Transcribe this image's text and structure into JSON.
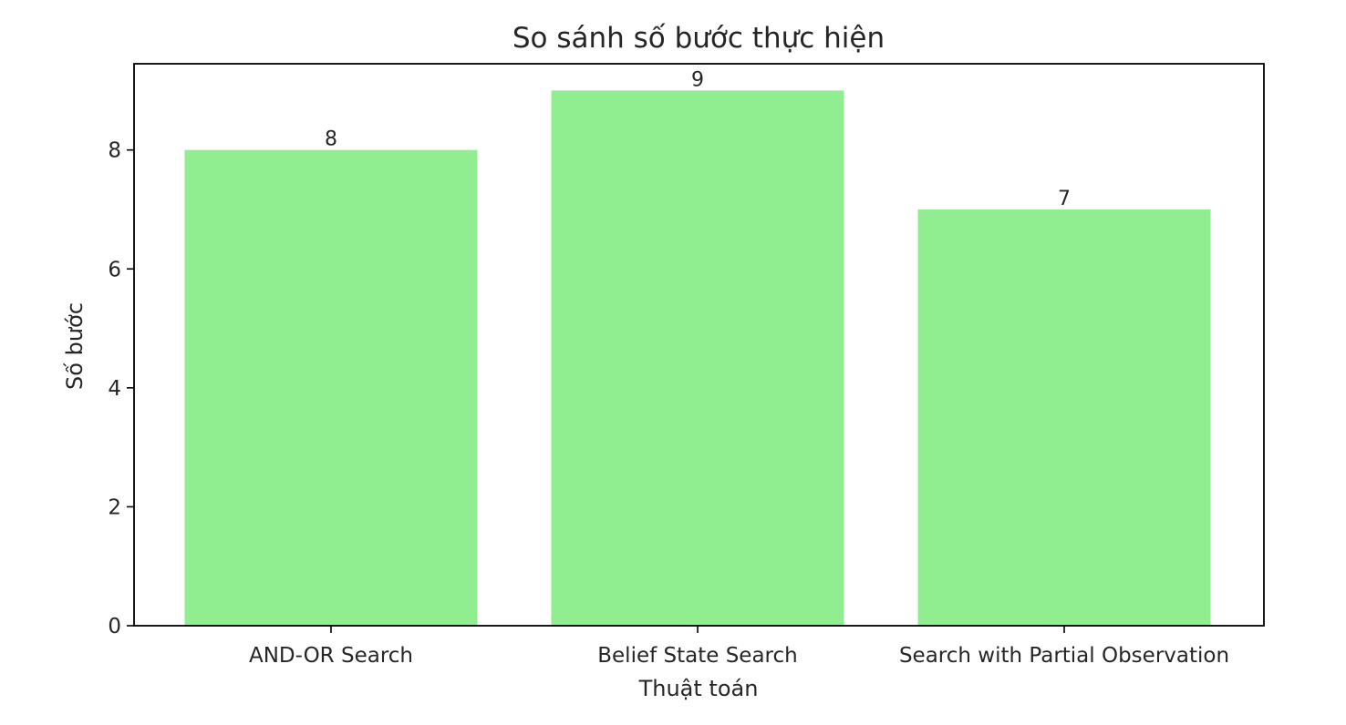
{
  "chart_data": {
    "type": "bar",
    "title": "So sánh số bước thực hiện",
    "xlabel": "Thuật toán",
    "ylabel": "Số bước",
    "categories": [
      "AND-OR Search",
      "Belief State Search",
      "Search with Partial Observation"
    ],
    "values": [
      8,
      9,
      7
    ],
    "ylim": [
      0,
      9.45
    ],
    "yticks": [
      0,
      2,
      4,
      6,
      8
    ],
    "grid": false,
    "bar_color": "#90ee90",
    "data_labels": [
      "8",
      "9",
      "7"
    ]
  }
}
